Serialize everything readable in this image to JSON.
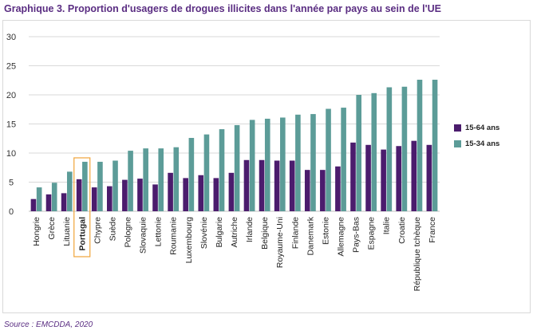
{
  "title": "Graphique 3. Proportion d'usagers de drogues illicites dans l'année par pays au sein de l'UE",
  "source": "Source : EMCDDA, 2020",
  "colors": {
    "series_15_64": "#4b1c6d",
    "series_15_34": "#5c9c98",
    "highlight": "#f0a33a",
    "grid": "#d9d9d9",
    "axis_text": "#333333"
  },
  "chart_data": {
    "type": "bar",
    "title": "Graphique 3. Proportion d'usagers de drogues illicites dans l'année par pays au sein de l'UE",
    "xlabel": "",
    "ylabel": "",
    "ylim": [
      0,
      30
    ],
    "yticks": [
      0,
      5,
      10,
      15,
      20,
      25,
      30
    ],
    "grid": true,
    "legend_position": "right",
    "highlighted_category": "Portugal",
    "categories": [
      "Hongrie",
      "Grèce",
      "Lituanie",
      "Portugal",
      "Chypre",
      "Suède",
      "Pologne",
      "Slovaquie",
      "Lettonie",
      "Roumanie",
      "Luxembourg",
      "Slovénie",
      "Bulgarie",
      "Autriche",
      "Irlande",
      "Belgique",
      "Royaume-Uni",
      "Finlande",
      "Danemark",
      "Estonie",
      "Allemagne",
      "Pays-Bas",
      "Espagne",
      "Italie",
      "Croatie",
      "République tchèque",
      "France"
    ],
    "series": [
      {
        "name": "15-64 ans",
        "values": [
          2.1,
          2.9,
          3.1,
          5.5,
          4.1,
          4.3,
          5.4,
          5.6,
          4.6,
          6.6,
          5.7,
          6.2,
          5.7,
          6.6,
          8.8,
          8.8,
          8.7,
          8.7,
          7.1,
          7.1,
          7.7,
          11.8,
          11.4,
          10.6,
          11.2,
          12.1,
          11.4
        ]
      },
      {
        "name": "15-34 ans",
        "values": [
          4.1,
          4.9,
          6.8,
          8.5,
          8.5,
          8.7,
          10.4,
          10.8,
          10.8,
          11.0,
          12.6,
          13.2,
          14.1,
          14.8,
          15.7,
          15.9,
          16.1,
          16.6,
          16.7,
          17.6,
          17.8,
          20.0,
          20.3,
          21.3,
          21.4,
          22.6,
          22.6
        ]
      }
    ]
  }
}
